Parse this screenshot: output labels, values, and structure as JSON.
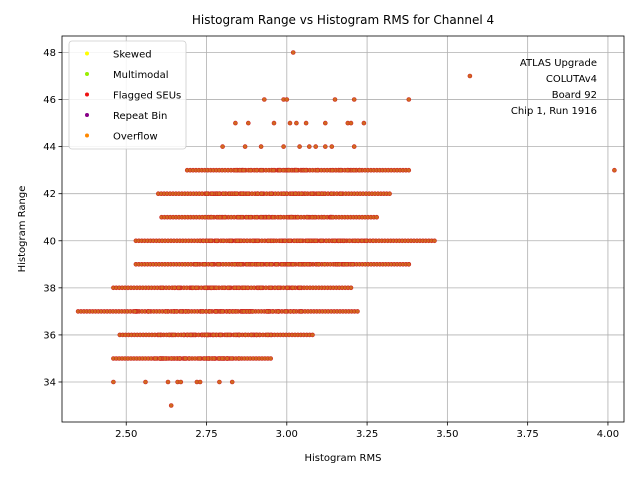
{
  "chart_data": {
    "type": "scatter",
    "title": "Histogram Range vs Histogram RMS for Channel 4",
    "xlabel": "Histogram RMS",
    "ylabel": "Histogram Range",
    "xlim": [
      2.3,
      4.05
    ],
    "ylim": [
      32.3,
      48.7
    ],
    "x_ticks": [
      "2.50",
      "2.75",
      "3.00",
      "3.25",
      "3.50",
      "3.75",
      "4.00"
    ],
    "y_ticks": [
      "34",
      "36",
      "38",
      "40",
      "42",
      "44",
      "46",
      "48"
    ],
    "grid": true,
    "legend_position": "top-left",
    "legend": [
      {
        "name": "Skewed",
        "color": "#ffff00"
      },
      {
        "name": "Multimodal",
        "color": "#99ee00"
      },
      {
        "name": "Flagged SEUs",
        "color": "#ee1111"
      },
      {
        "name": "Repeat Bin",
        "color": "#880088"
      },
      {
        "name": "Overflow",
        "color": "#ff8800"
      }
    ],
    "point_fill": "#d2691e",
    "point_edge": "#cc2222",
    "annotation": [
      "ATLAS Upgrade",
      "COLUTAv4",
      "Board 92",
      "Chip 1, Run 1916"
    ],
    "bands": [
      {
        "y": 33,
        "x": [
          2.64
        ]
      },
      {
        "y": 34,
        "x": [
          2.46,
          2.56,
          2.63,
          2.66,
          2.67,
          2.72,
          2.73,
          2.79,
          2.83
        ]
      },
      {
        "y": 35,
        "x_range": [
          2.46,
          2.95
        ]
      },
      {
        "y": 36,
        "x_range": [
          2.48,
          3.08
        ]
      },
      {
        "y": 37,
        "x_range": [
          2.35,
          3.22
        ]
      },
      {
        "y": 38,
        "x_range": [
          2.46,
          3.2
        ]
      },
      {
        "y": 39,
        "x_range": [
          2.53,
          3.38
        ]
      },
      {
        "y": 40,
        "x_range": [
          2.53,
          3.46
        ]
      },
      {
        "y": 41,
        "x_range": [
          2.61,
          3.28
        ]
      },
      {
        "y": 42,
        "x_range": [
          2.6,
          3.32
        ]
      },
      {
        "y": 43,
        "x_range": [
          2.69,
          3.38
        ]
      },
      {
        "y": 44,
        "x": [
          2.8,
          2.87,
          2.92,
          2.99,
          3.04,
          3.07,
          3.09,
          3.12,
          3.14,
          3.21
        ]
      },
      {
        "y": 45,
        "x": [
          2.84,
          2.88,
          2.96,
          3.01,
          3.03,
          3.06,
          3.12,
          3.19,
          3.2,
          3.24
        ]
      },
      {
        "y": 46,
        "x": [
          2.93,
          2.99,
          3.0,
          3.15,
          3.21,
          3.38
        ]
      },
      {
        "y": 47,
        "x": [
          3.57
        ]
      },
      {
        "y": 48,
        "x": [
          3.02
        ]
      }
    ],
    "outliers": [
      {
        "x": 4.02,
        "y": 43
      },
      {
        "x": 3.38,
        "y": 39
      }
    ]
  }
}
